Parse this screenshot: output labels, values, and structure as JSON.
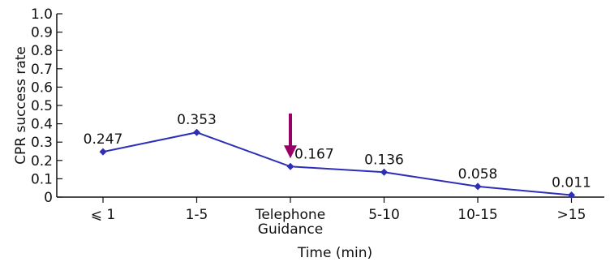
{
  "chart_data": {
    "type": "line",
    "xlabel": "Time (min)",
    "ylabel": "CPR success rate",
    "ylim": [
      0,
      1.0
    ],
    "yticks": [
      "0",
      "0.1",
      "0.2",
      "0.3",
      "0.4",
      "0.5",
      "0.6",
      "0.7",
      "0.8",
      "0.9",
      "1.0"
    ],
    "categories": [
      [
        "⩽ 1"
      ],
      [
        "1-5"
      ],
      [
        "Telephone",
        "Guidance"
      ],
      [
        "5-10"
      ],
      [
        "10-15"
      ],
      [
        ">15"
      ]
    ],
    "series": [
      {
        "values": [
          0.247,
          0.353,
          0.167,
          0.136,
          0.058,
          0.011
        ],
        "labels": [
          "0.247",
          "0.353",
          "0.167",
          "0.136",
          "0.058",
          "0.011"
        ],
        "color": "#2e2eb8",
        "marker": "diamond"
      }
    ],
    "annotation": {
      "type": "arrow",
      "category_index": 2,
      "color": "#990066"
    },
    "grid": false,
    "legend": "none"
  }
}
